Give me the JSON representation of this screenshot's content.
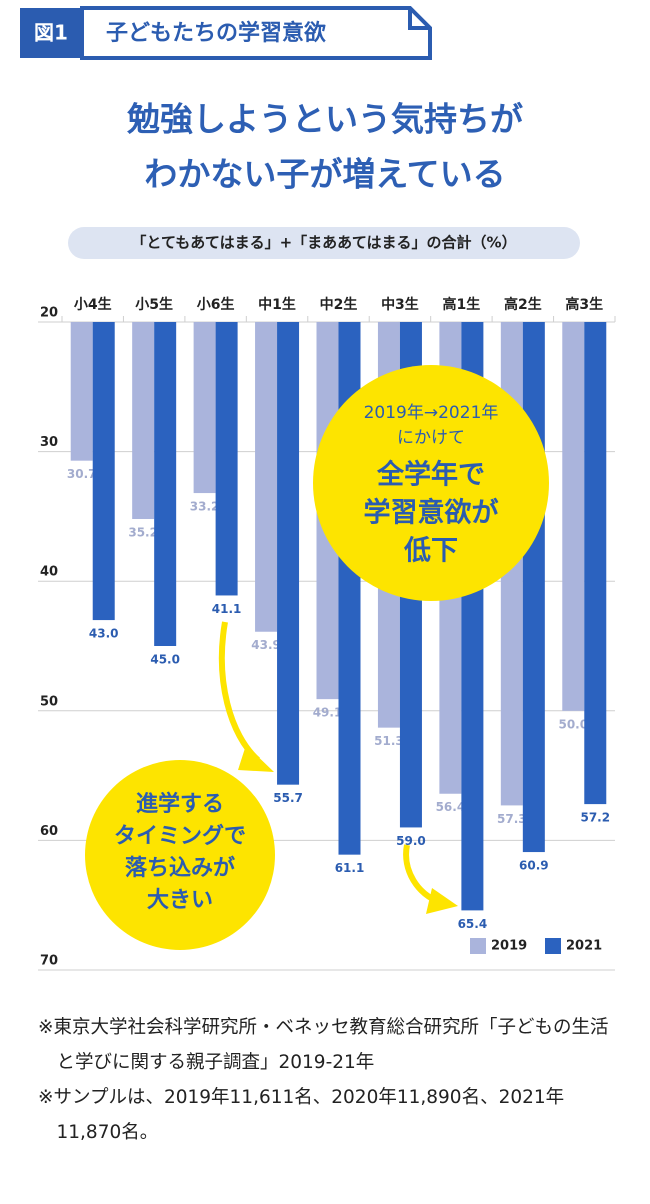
{
  "header": {
    "tag": "図1",
    "title": "子どもたちの学習意欲"
  },
  "chart_data": {
    "type": "bar",
    "title": [
      "勉強しようという気持ちが",
      "わかない子が増えている"
    ],
    "subtitle": "「とてもあてはまる」+「まああてはまる」の合計（%）",
    "categories": [
      "小4生",
      "小5生",
      "小6生",
      "中1生",
      "中2生",
      "中3生",
      "高1生",
      "高2生",
      "高3生"
    ],
    "series": [
      {
        "name": "2019",
        "color": "#aab4dc",
        "label_color": "#a3acce",
        "values": [
          30.7,
          35.2,
          33.2,
          43.9,
          49.1,
          51.3,
          56.4,
          57.3,
          50.0
        ],
        "value_labels": [
          "30.7",
          "35.2",
          "33.2",
          "43.9",
          "49.1",
          "51.3",
          "56.4",
          "57.3",
          "50.0"
        ]
      },
      {
        "name": "2021",
        "color": "#2b62bf",
        "label_color": "#2b5cb0",
        "values": [
          43.0,
          45.0,
          41.1,
          55.7,
          61.1,
          59.0,
          65.4,
          60.9,
          57.2
        ],
        "value_labels": [
          "43.0",
          "45.0",
          "41.1",
          "55.7",
          "61.1",
          "59.0",
          "65.4",
          "60.9",
          "57.2"
        ]
      }
    ],
    "ylim": [
      20,
      70
    ],
    "yticks": [
      20,
      30,
      40,
      50,
      60,
      70
    ],
    "y_reversed": true,
    "grid": true,
    "legend": "lower right",
    "annotations": [
      {
        "lines": [
          "2019年→2021年",
          "にかけて",
          "全学年で",
          "学習意欲が",
          "低下"
        ]
      },
      {
        "lines": [
          "進学する",
          "タイミングで",
          "落ち込みが",
          "大きい"
        ]
      }
    ]
  },
  "notes": [
    "※東京大学社会科学研究所・ベネッセ教育総合研究所「子どもの生活と学びに関する親子調査」2019-21年",
    "※サンプルは、2019年11,611名、2020年11,890名、2021年11,870名。"
  ]
}
